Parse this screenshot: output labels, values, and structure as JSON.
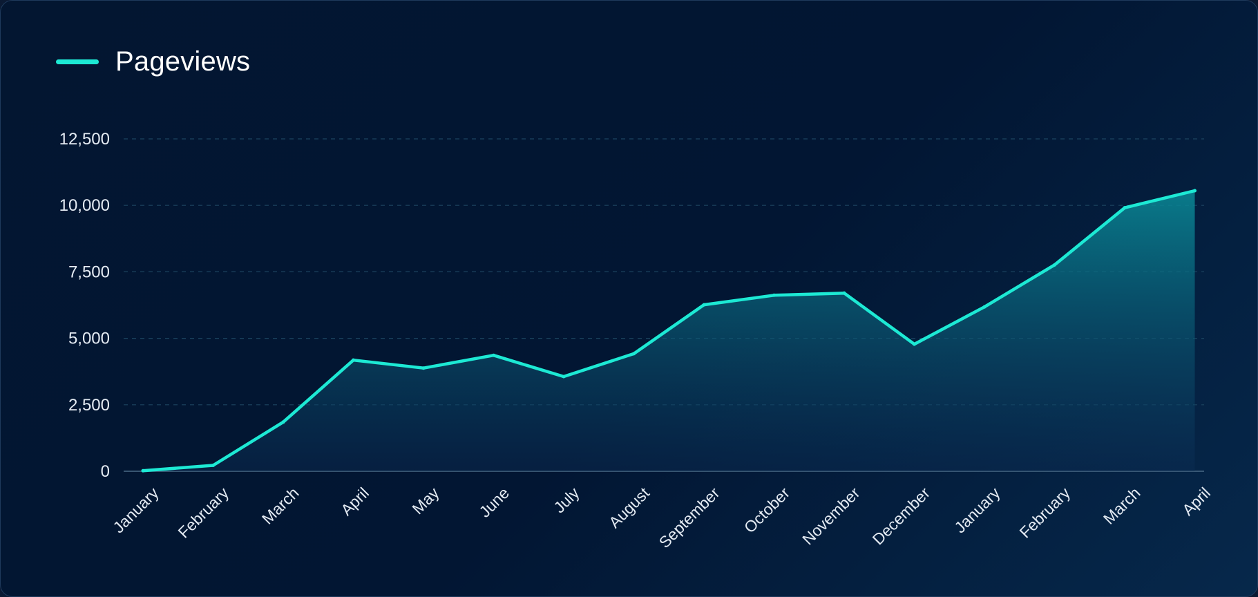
{
  "chart_data": {
    "type": "area",
    "title": "",
    "xlabel": "",
    "ylabel": "",
    "categories": [
      "January",
      "February",
      "March",
      "April",
      "May",
      "June",
      "July",
      "August",
      "September",
      "October",
      "November",
      "December",
      "January",
      "February",
      "March",
      "April"
    ],
    "series": [
      {
        "name": "Pageviews",
        "values": [
          20,
          220,
          1850,
          4180,
          3880,
          4360,
          3560,
          4420,
          6260,
          6620,
          6700,
          4780,
          6180,
          7760,
          9910,
          10550
        ]
      }
    ],
    "ylim": [
      0,
      12500
    ],
    "yticks": [
      0,
      2500,
      5000,
      7500,
      10000,
      12500
    ],
    "ytick_labels": [
      "0",
      "2,500",
      "5,000",
      "7,500",
      "10,000",
      "12,500"
    ],
    "grid": "horizontal-dashed",
    "legend": "top-left",
    "colors": {
      "line": "#1de9d4",
      "fill_top": "#0a8b98",
      "fill_bottom": "#0b2d55",
      "grid": "#1c4460",
      "axis": "#4a6a86"
    }
  }
}
